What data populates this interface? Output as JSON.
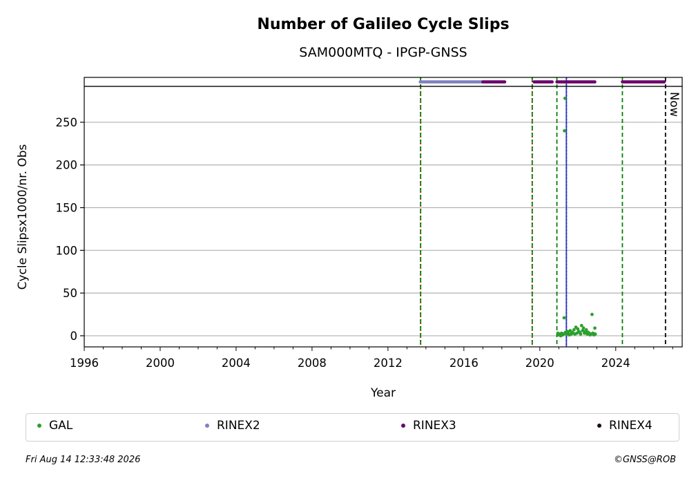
{
  "chart_data": {
    "type": "scatter",
    "title": "Number of Galileo Cycle Slips",
    "subtitle": "SAM000MTQ - IPGP-GNSS",
    "xlabel": "Year",
    "ylabel": "Cycle Slipsx1000/nr. Obs",
    "xlim": [
      1996,
      2027.5
    ],
    "ylim": [
      -13,
      292
    ],
    "xticks": [
      1996,
      2000,
      2004,
      2008,
      2012,
      2016,
      2020,
      2024
    ],
    "yticks": [
      0,
      50,
      100,
      150,
      200,
      250
    ],
    "grid": "horizontal",
    "now_label": "Now",
    "now_year": 2026.62,
    "series": [
      {
        "name": "GAL",
        "color": "#2ca02c",
        "points": [
          [
            2020.95,
            3
          ],
          [
            2021.0,
            1
          ],
          [
            2021.05,
            2
          ],
          [
            2021.1,
            0
          ],
          [
            2021.15,
            3
          ],
          [
            2021.2,
            1
          ],
          [
            2021.25,
            2
          ],
          [
            2021.28,
            21
          ],
          [
            2021.3,
            240
          ],
          [
            2021.33,
            278
          ],
          [
            2021.35,
            4
          ],
          [
            2021.4,
            2
          ],
          [
            2021.45,
            5
          ],
          [
            2021.5,
            3
          ],
          [
            2021.55,
            1
          ],
          [
            2021.6,
            6
          ],
          [
            2021.65,
            2
          ],
          [
            2021.7,
            4
          ],
          [
            2021.75,
            3
          ],
          [
            2021.8,
            7
          ],
          [
            2021.85,
            2
          ],
          [
            2021.9,
            10
          ],
          [
            2021.95,
            3
          ],
          [
            2022.0,
            8
          ],
          [
            2022.05,
            5
          ],
          [
            2022.1,
            4
          ],
          [
            2022.15,
            2
          ],
          [
            2022.2,
            12
          ],
          [
            2022.25,
            6
          ],
          [
            2022.3,
            9
          ],
          [
            2022.35,
            3
          ],
          [
            2022.4,
            5
          ],
          [
            2022.45,
            7
          ],
          [
            2022.5,
            2
          ],
          [
            2022.55,
            4
          ],
          [
            2022.6,
            3
          ],
          [
            2022.65,
            1
          ],
          [
            2022.7,
            2
          ],
          [
            2022.75,
            25
          ],
          [
            2022.8,
            3
          ],
          [
            2022.85,
            1
          ],
          [
            2022.9,
            9
          ],
          [
            2022.92,
            2
          ]
        ]
      }
    ],
    "format_bars": [
      {
        "name": "RINEX2",
        "color": "#8080c0",
        "ranges": [
          [
            2013.7,
            2017.0
          ]
        ]
      },
      {
        "name": "RINEX3",
        "color": "#6b006b",
        "ranges": [
          [
            2017.0,
            2018.15
          ],
          [
            2019.7,
            2020.65
          ],
          [
            2020.9,
            2022.9
          ],
          [
            2024.35,
            2026.55
          ]
        ]
      }
    ],
    "vlines": [
      {
        "x": 2013.72,
        "color": "#d62728",
        "style": "dotted"
      },
      {
        "x": 2013.72,
        "color": "#008000",
        "style": "dashed"
      },
      {
        "x": 2019.6,
        "color": "#d62728",
        "style": "dotted"
      },
      {
        "x": 2019.6,
        "color": "#008000",
        "style": "dashed"
      },
      {
        "x": 2020.9,
        "color": "#008000",
        "style": "dashed"
      },
      {
        "x": 2021.4,
        "color": "#d62728",
        "style": "dotted"
      },
      {
        "x": 2021.4,
        "color": "#1f3fd0",
        "style": "solid"
      },
      {
        "x": 2024.35,
        "color": "#008000",
        "style": "dashed"
      },
      {
        "x": 2026.62,
        "color": "#000000",
        "style": "dashed"
      }
    ]
  },
  "legend": [
    {
      "label": "GAL",
      "color": "#2ca02c"
    },
    {
      "label": "RINEX2",
      "color": "#8080c0"
    },
    {
      "label": "RINEX3",
      "color": "#6b006b"
    },
    {
      "label": "RINEX4",
      "color": "#1a0a1a"
    }
  ],
  "footer": {
    "timestamp": "Fri Aug 14 12:33:48 2026",
    "copyright": "©GNSS@ROB"
  }
}
